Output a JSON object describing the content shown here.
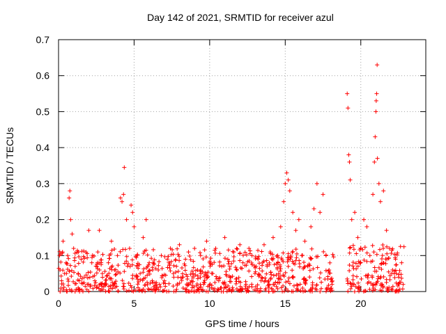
{
  "chart_data": {
    "type": "scatter",
    "title": "Day 142 of 2021, SRMTID for receiver azul",
    "xlabel": "GPS time / hours",
    "ylabel": "SRMTID / TECUs",
    "xlim": [
      0,
      24.3
    ],
    "ylim": [
      0,
      0.7
    ],
    "xticks": [
      0,
      5,
      10,
      15,
      20
    ],
    "yticks": [
      0,
      0.1,
      0.2,
      0.3,
      0.4,
      0.5,
      0.6,
      0.7
    ],
    "grid": true,
    "marker": "+",
    "color": "#ff0000",
    "series": [
      {
        "name": "SRMTID",
        "points": [
          [
            0.1,
            0.06
          ],
          [
            0.2,
            0.03
          ],
          [
            0.3,
            0.14
          ],
          [
            0.4,
            0.05
          ],
          [
            0.5,
            0.08
          ],
          [
            0.6,
            0.1
          ],
          [
            0.7,
            0.26
          ],
          [
            0.75,
            0.28
          ],
          [
            0.8,
            0.2
          ],
          [
            0.9,
            0.16
          ],
          [
            1.0,
            0.12
          ],
          [
            1.1,
            0.07
          ],
          [
            1.3,
            0.05
          ],
          [
            1.5,
            0.09
          ],
          [
            1.7,
            0.04
          ],
          [
            1.9,
            0.02
          ],
          [
            2.0,
            0.17
          ],
          [
            2.2,
            0.08
          ],
          [
            2.4,
            0.03
          ],
          [
            2.6,
            0.11
          ],
          [
            2.7,
            0.17
          ],
          [
            2.9,
            0.05
          ],
          [
            3.1,
            0.02
          ],
          [
            3.3,
            0.08
          ],
          [
            3.5,
            0.14
          ],
          [
            3.7,
            0.06
          ],
          [
            3.9,
            0.1
          ],
          [
            4.1,
            0.26
          ],
          [
            4.2,
            0.25
          ],
          [
            4.3,
            0.27
          ],
          [
            4.35,
            0.345
          ],
          [
            4.5,
            0.2
          ],
          [
            4.7,
            0.12
          ],
          [
            4.8,
            0.24
          ],
          [
            4.9,
            0.22
          ],
          [
            5.0,
            0.18
          ],
          [
            5.2,
            0.1
          ],
          [
            5.4,
            0.05
          ],
          [
            5.6,
            0.15
          ],
          [
            5.8,
            0.2
          ],
          [
            6.0,
            0.08
          ],
          [
            6.2,
            0.03
          ],
          [
            6.4,
            0.0
          ],
          [
            6.6,
            0.06
          ],
          [
            6.8,
            0.1
          ],
          [
            7.0,
            0.03
          ],
          [
            7.2,
            0.09
          ],
          [
            7.4,
            0.12
          ],
          [
            7.6,
            0.05
          ],
          [
            7.8,
            0.07
          ],
          [
            8.0,
            0.13
          ],
          [
            8.2,
            0.04
          ],
          [
            8.4,
            0.09
          ],
          [
            8.6,
            0.11
          ],
          [
            8.8,
            0.03
          ],
          [
            9.0,
            0.12
          ],
          [
            9.2,
            0.06
          ],
          [
            9.4,
            0.1
          ],
          [
            9.6,
            0.02
          ],
          [
            9.8,
            0.14
          ],
          [
            10.0,
            0.08
          ],
          [
            10.2,
            0.05
          ],
          [
            10.4,
            0.12
          ],
          [
            10.6,
            0.03
          ],
          [
            10.8,
            0.07
          ],
          [
            11.0,
            0.15
          ],
          [
            11.2,
            0.09
          ],
          [
            11.4,
            0.04
          ],
          [
            11.6,
            0.11
          ],
          [
            11.8,
            0.06
          ],
          [
            12.0,
            0.13
          ],
          [
            12.2,
            0.08
          ],
          [
            12.4,
            0.02
          ],
          [
            12.6,
            0.12
          ],
          [
            12.8,
            0.1
          ],
          [
            13.0,
            0.05
          ],
          [
            13.2,
            0.09
          ],
          [
            13.4,
            0.03
          ],
          [
            13.6,
            0.13
          ],
          [
            13.8,
            0.07
          ],
          [
            14.0,
            0.11
          ],
          [
            14.2,
            0.15
          ],
          [
            14.5,
            0.1
          ],
          [
            14.7,
            0.18
          ],
          [
            14.9,
            0.25
          ],
          [
            15.0,
            0.3
          ],
          [
            15.1,
            0.33
          ],
          [
            15.2,
            0.31
          ],
          [
            15.3,
            0.28
          ],
          [
            15.5,
            0.22
          ],
          [
            15.7,
            0.17
          ],
          [
            15.9,
            0.2
          ],
          [
            16.1,
            0.1
          ],
          [
            16.3,
            0.14
          ],
          [
            16.5,
            0.07
          ],
          [
            16.7,
            0.18
          ],
          [
            16.9,
            0.23
          ],
          [
            17.1,
            0.3
          ],
          [
            17.3,
            0.22
          ],
          [
            17.5,
            0.27
          ],
          [
            17.7,
            0.1
          ],
          [
            17.9,
            0.06
          ],
          [
            18.1,
            0.02
          ],
          [
            19.1,
            0.55
          ],
          [
            19.15,
            0.51
          ],
          [
            19.2,
            0.38
          ],
          [
            19.25,
            0.36
          ],
          [
            19.3,
            0.31
          ],
          [
            19.4,
            0.2
          ],
          [
            19.6,
            0.22
          ],
          [
            19.8,
            0.15
          ],
          [
            20.0,
            0.12
          ],
          [
            20.2,
            0.2
          ],
          [
            20.4,
            0.18
          ],
          [
            20.6,
            0.1
          ],
          [
            20.8,
            0.27
          ],
          [
            20.9,
            0.36
          ],
          [
            20.95,
            0.43
          ],
          [
            21.0,
            0.5
          ],
          [
            21.02,
            0.53
          ],
          [
            21.05,
            0.55
          ],
          [
            21.08,
            0.63
          ],
          [
            21.1,
            0.37
          ],
          [
            21.2,
            0.3
          ],
          [
            21.3,
            0.25
          ],
          [
            21.5,
            0.28
          ],
          [
            21.7,
            0.17
          ],
          [
            21.9,
            0.12
          ],
          [
            22.1,
            0.06
          ],
          [
            22.3,
            0.09
          ],
          [
            22.5,
            0.04
          ],
          [
            22.7,
            0.08
          ],
          [
            22.8,
            0.02
          ]
        ]
      }
    ],
    "noise_bands": [
      {
        "from": 0.0,
        "to": 18.2,
        "max": 0.12
      },
      {
        "from": 19.0,
        "to": 22.9,
        "max": 0.13
      }
    ]
  }
}
